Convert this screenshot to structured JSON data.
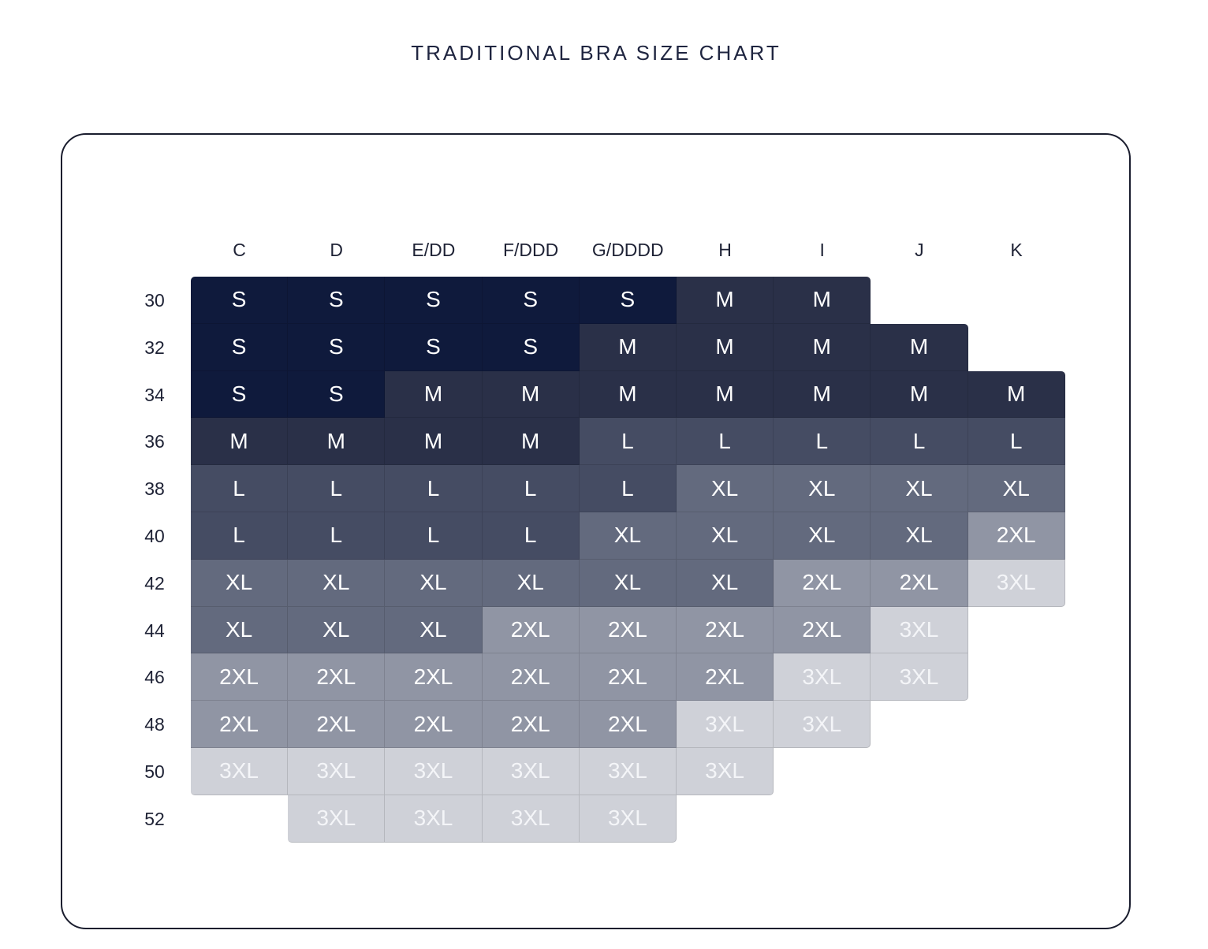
{
  "title": "TRADITIONAL BRA SIZE CHART",
  "colors": {
    "S": "#0f1a3c",
    "M": "#2a3048",
    "L": "#454c63",
    "XL": "#636a7e",
    "2XL": "#9095a4",
    "3XL": "#cfd1d8",
    "text_dark": "#ffffff",
    "text_light": "#f4f5f8"
  },
  "chart_data": {
    "type": "table",
    "title": "TRADITIONAL BRA SIZE CHART",
    "columns": [
      "C",
      "D",
      "E/DD",
      "F/DDD",
      "G/DDDD",
      "H",
      "I",
      "J",
      "K"
    ],
    "rows": [
      "30",
      "32",
      "34",
      "36",
      "38",
      "40",
      "42",
      "44",
      "46",
      "48",
      "50",
      "52"
    ],
    "cells": [
      [
        "S",
        "S",
        "S",
        "S",
        "S",
        "M",
        "M",
        "",
        ""
      ],
      [
        "S",
        "S",
        "S",
        "S",
        "M",
        "M",
        "M",
        "M",
        ""
      ],
      [
        "S",
        "S",
        "M",
        "M",
        "M",
        "M",
        "M",
        "M",
        "M"
      ],
      [
        "M",
        "M",
        "M",
        "M",
        "L",
        "L",
        "L",
        "L",
        "L"
      ],
      [
        "L",
        "L",
        "L",
        "L",
        "L",
        "XL",
        "XL",
        "XL",
        "XL"
      ],
      [
        "L",
        "L",
        "L",
        "L",
        "XL",
        "XL",
        "XL",
        "XL",
        "2XL"
      ],
      [
        "XL",
        "XL",
        "XL",
        "XL",
        "XL",
        "XL",
        "2XL",
        "2XL",
        "3XL"
      ],
      [
        "XL",
        "XL",
        "XL",
        "2XL",
        "2XL",
        "2XL",
        "2XL",
        "3XL",
        ""
      ],
      [
        "2XL",
        "2XL",
        "2XL",
        "2XL",
        "2XL",
        "2XL",
        "3XL",
        "3XL",
        ""
      ],
      [
        "2XL",
        "2XL",
        "2XL",
        "2XL",
        "2XL",
        "3XL",
        "3XL",
        "",
        ""
      ],
      [
        "3XL",
        "3XL",
        "3XL",
        "3XL",
        "3XL",
        "3XL",
        "",
        "",
        ""
      ],
      [
        "",
        "3XL",
        "3XL",
        "3XL",
        "3XL",
        "",
        "",
        "",
        ""
      ]
    ]
  }
}
